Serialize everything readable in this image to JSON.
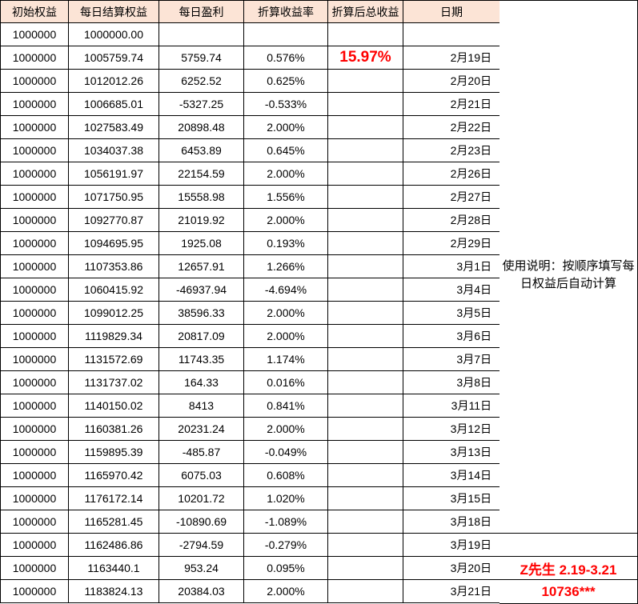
{
  "colors": {
    "header_bg": "#FCE4D6",
    "accent_red": "#FF0000",
    "grid_border": "#000000",
    "cell_text": "#000000"
  },
  "table": {
    "headers": [
      "初始权益",
      "每日结算权益",
      "每日盈利",
      "折算收益率",
      "折算后总收益",
      "日期"
    ],
    "rows": [
      [
        "1000000",
        "1000000.00",
        "",
        "",
        "",
        ""
      ],
      [
        "1000000",
        "1005759.74",
        "5759.74",
        "0.576%",
        "15.97%",
        "2月19日"
      ],
      [
        "1000000",
        "1012012.26",
        "6252.52",
        "0.625%",
        "",
        "2月20日"
      ],
      [
        "1000000",
        "1006685.01",
        "-5327.25",
        "-0.533%",
        "",
        "2月21日"
      ],
      [
        "1000000",
        "1027583.49",
        "20898.48",
        "2.000%",
        "",
        "2月22日"
      ],
      [
        "1000000",
        "1034037.38",
        "6453.89",
        "0.645%",
        "",
        "2月23日"
      ],
      [
        "1000000",
        "1056191.97",
        "22154.59",
        "2.000%",
        "",
        "2月26日"
      ],
      [
        "1000000",
        "1071750.95",
        "15558.98",
        "1.556%",
        "",
        "2月27日"
      ],
      [
        "1000000",
        "1092770.87",
        "21019.92",
        "2.000%",
        "",
        "2月28日"
      ],
      [
        "1000000",
        "1094695.95",
        "1925.08",
        "0.193%",
        "",
        "2月29日"
      ],
      [
        "1000000",
        "1107353.86",
        "12657.91",
        "1.266%",
        "",
        "3月1日"
      ],
      [
        "1000000",
        "1060415.92",
        "-46937.94",
        "-4.694%",
        "",
        "3月4日"
      ],
      [
        "1000000",
        "1099012.25",
        "38596.33",
        "2.000%",
        "",
        "3月5日"
      ],
      [
        "1000000",
        "1119829.34",
        "20817.09",
        "2.000%",
        "",
        "3月6日"
      ],
      [
        "1000000",
        "1131572.69",
        "11743.35",
        "1.174%",
        "",
        "3月7日"
      ],
      [
        "1000000",
        "1131737.02",
        "164.33",
        "0.016%",
        "",
        "3月8日"
      ],
      [
        "1000000",
        "1140150.02",
        "8413",
        "0.841%",
        "",
        "3月11日"
      ],
      [
        "1000000",
        "1160381.26",
        "20231.24",
        "2.000%",
        "",
        "3月12日"
      ],
      [
        "1000000",
        "1159895.39",
        "-485.87",
        "-0.049%",
        "",
        "3月13日"
      ],
      [
        "1000000",
        "1165970.42",
        "6075.03",
        "0.608%",
        "",
        "3月14日"
      ],
      [
        "1000000",
        "1176172.14",
        "10201.72",
        "1.020%",
        "",
        "3月15日"
      ],
      [
        "1000000",
        "1165281.45",
        "-10890.69",
        "-1.089%",
        "",
        "3月18日"
      ],
      [
        "1000000",
        "1162486.86",
        "-2794.59",
        "-0.279%",
        "",
        "3月19日"
      ],
      [
        "1000000",
        "1163440.1",
        "953.24",
        "0.095%",
        "",
        "3月20日"
      ],
      [
        "1000000",
        "1183824.13",
        "20384.03",
        "2.000%",
        "",
        "3月21日"
      ]
    ]
  },
  "usage_note": {
    "line1": "使用说明：按顺序填写每",
    "line2": "日权益后自动计算"
  },
  "footer": {
    "trader_label": "Z先生 2.19-3.21",
    "account_masked": "10736***"
  }
}
